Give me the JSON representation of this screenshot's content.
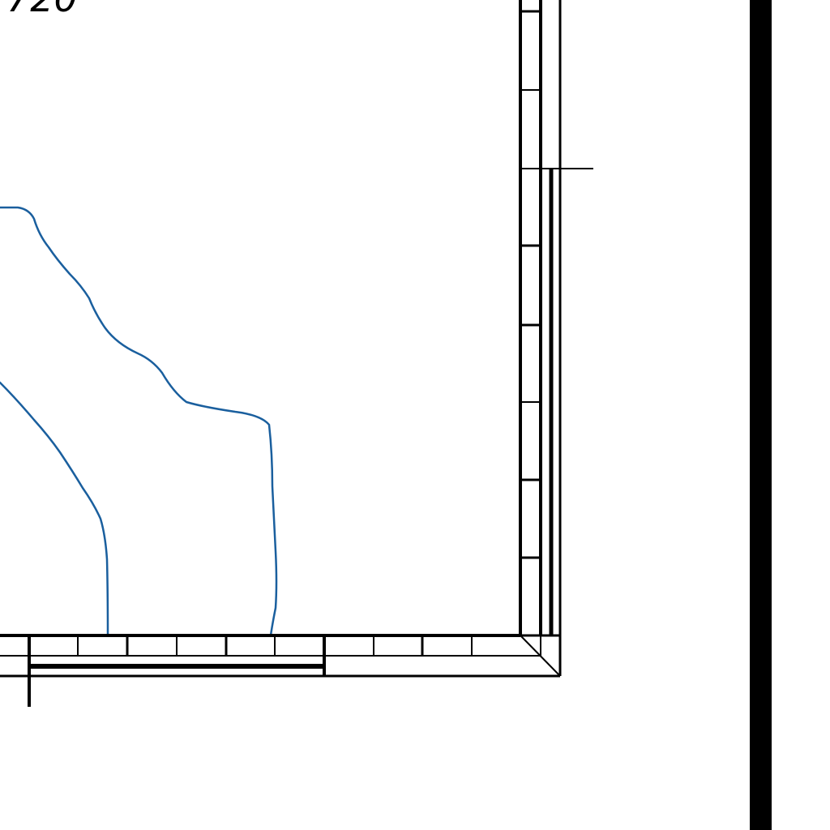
{
  "map": {
    "type": "topographic-map-fragment",
    "colors": {
      "contour": "#1a5f9e",
      "frame": "#000000",
      "background": "#ffffff"
    },
    "labels": {
      "contour_elevation": "720"
    },
    "contour_lines": [
      {
        "name": "contour-line-inner"
      },
      {
        "name": "contour-line-outer"
      }
    ]
  }
}
